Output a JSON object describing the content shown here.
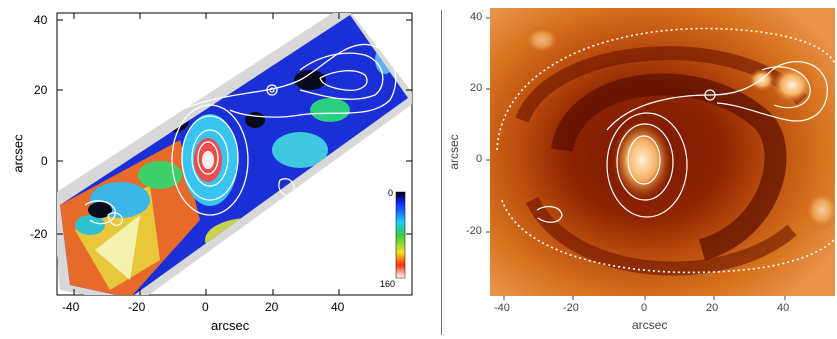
{
  "left_panel": {
    "xlabel": "arcsec",
    "ylabel": "arcsec",
    "xticks": [
      "-40",
      "-20",
      "0",
      "20",
      "40"
    ],
    "yticks": [
      "40",
      "20",
      "0",
      "-20"
    ],
    "colorbar": {
      "top_label": "0",
      "bottom_label": "160"
    }
  },
  "right_panel": {
    "xlabel": "arcsec",
    "ylabel": "arcsec",
    "xticks": [
      "-40",
      "-20",
      "0",
      "20",
      "40"
    ],
    "yticks": [
      "40",
      "20",
      "0",
      "-20"
    ]
  },
  "colors": {
    "map_blue": "#1b2fd6",
    "map_black": "#0a0a1a",
    "contour": "#ffffff",
    "ha_dark": "#6e1200",
    "ha_bright": "#f5b060"
  }
}
